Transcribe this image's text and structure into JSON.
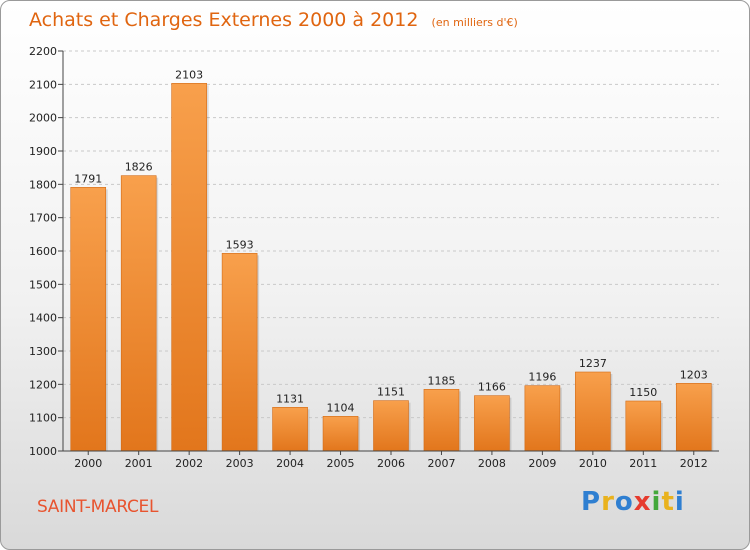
{
  "chart_data": {
    "type": "bar",
    "title": "Achats et Charges Externes 2000 à 2012",
    "subtitle": "(en milliers d'€)",
    "categories": [
      "2000",
      "2001",
      "2002",
      "2003",
      "2004",
      "2005",
      "2006",
      "2007",
      "2008",
      "2009",
      "2010",
      "2011",
      "2012"
    ],
    "values": [
      1791,
      1826,
      2103,
      1593,
      1131,
      1104,
      1151,
      1185,
      1166,
      1196,
      1237,
      1150,
      1203
    ],
    "ylim": [
      1000,
      2200
    ],
    "yticks": [
      1000,
      1100,
      1200,
      1300,
      1400,
      1500,
      1600,
      1700,
      1800,
      1900,
      2000,
      2100,
      2200
    ],
    "grid": true,
    "bar_color": "#f5902f"
  },
  "commune": "SAINT-MARCEL",
  "logo": {
    "text": "Proxiti",
    "letters": [
      {
        "ch": "P",
        "color": "#2f7fd1"
      },
      {
        "ch": "r",
        "color": "#e9b21e"
      },
      {
        "ch": "o",
        "color": "#2f7fd1"
      },
      {
        "ch": "x",
        "color": "#e63b2e"
      },
      {
        "ch": "i",
        "color": "#43a83a"
      },
      {
        "ch": "t",
        "color": "#e9b21e"
      },
      {
        "ch": "i",
        "color": "#2f7fd1"
      }
    ]
  }
}
